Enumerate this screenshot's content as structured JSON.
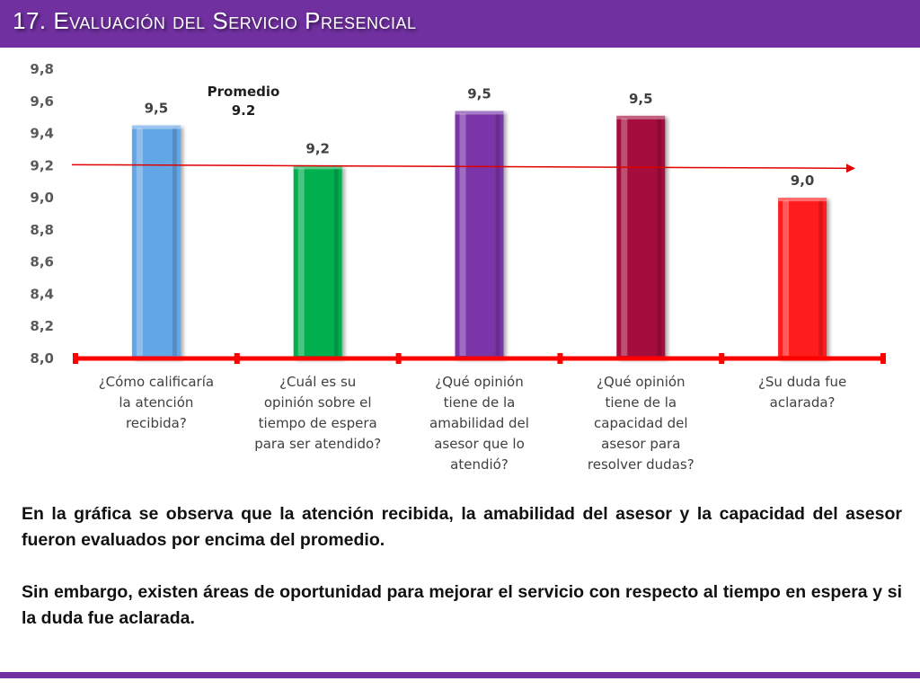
{
  "slide": {
    "title": "17. Evaluación del Servicio Presencial",
    "paragraphs": [
      "En la gráfica se observa que la atención recibida, la amabilidad  del asesor y la capacidad del asesor fueron evaluados por encima del promedio.",
      "Sin embargo, existen áreas de oportunidad para mejorar el servicio con respecto al tiempo en espera y si la duda fue aclarada."
    ]
  },
  "colors": {
    "accent": "#7030a0",
    "axis": "#ff0000",
    "average_line": "#e00000",
    "bars": [
      "#63a6e6",
      "#00b050",
      "#7a35a8",
      "#a50d3c",
      "#ff1a1a"
    ]
  },
  "chart_data": {
    "type": "bar",
    "categories": [
      "¿Cómo calificaría la atención recibida?",
      "¿Cuál es su opinión sobre el tiempo de espera para ser atendido?",
      "¿Qué opinión tiene de la amabilidad del asesor que lo atendió?",
      "¿Qué opinión tiene de la capacidad del asesor para resolver dudas?",
      "¿Su duda fue aclarada?"
    ],
    "category_lines": [
      [
        "¿Cómo calificaría",
        "la atención",
        "recibida?"
      ],
      [
        "¿Cuál es su",
        "opinión sobre el",
        "tiempo de espera",
        "para ser atendido?"
      ],
      [
        "¿Qué opinión",
        "tiene de la",
        "amabilidad del",
        "asesor que lo",
        "atendió?"
      ],
      [
        "¿Qué opinión",
        "tiene de la",
        "capacidad del",
        "asesor para",
        "resolver dudas?"
      ],
      [
        "¿Su duda fue",
        "aclarada?"
      ]
    ],
    "values": [
      9.45,
      9.2,
      9.54,
      9.51,
      9.0
    ],
    "data_labels": [
      "9,5",
      "9,2",
      "9,5",
      "9,5",
      "9,0"
    ],
    "ylim": [
      8.0,
      9.8
    ],
    "yticks": [
      8.0,
      8.2,
      8.4,
      8.6,
      8.8,
      9.0,
      9.2,
      9.4,
      9.6,
      9.8
    ],
    "ytick_labels": [
      "8,0",
      "8,2",
      "8,4",
      "8,6",
      "8,8",
      "9,0",
      "9,2",
      "9,4",
      "9,6",
      "9,8"
    ],
    "average": {
      "value": 9.2,
      "label_lines": [
        "Promedio",
        "9.2"
      ]
    },
    "grid": false,
    "legend": "none"
  }
}
